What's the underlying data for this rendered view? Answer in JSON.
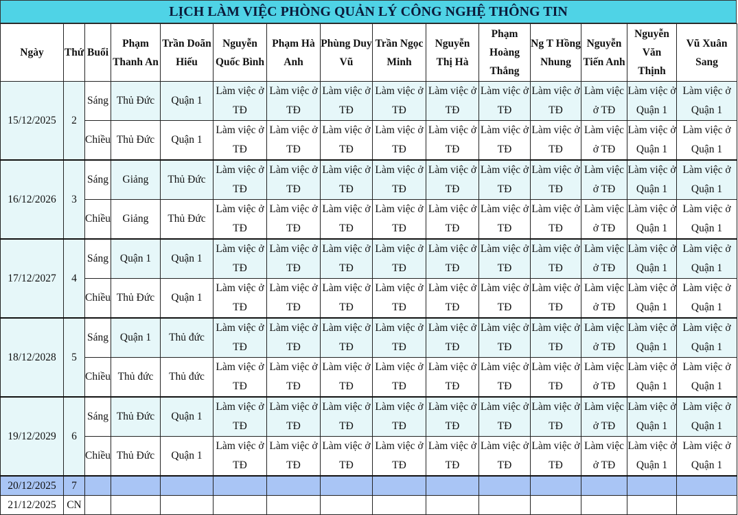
{
  "title": "LỊCH LÀM VIỆC PHÒNG QUẢN LÝ CÔNG NGHỆ THÔNG TIN",
  "headers": {
    "date": "Ngày",
    "weekday": "Thứ",
    "session": "Buổi",
    "people": [
      "Phạm Thanh An",
      "Trần Doãn Hiếu",
      "Nguyễn Quốc Bình",
      "Phạm Hà Anh",
      "Phùng Duy Vũ",
      "Trần Ngọc Minh",
      "Nguyễn Thị Hà",
      "Phạm Hoàng Thắng",
      "Ng T Hồng Nhung",
      "Nguyễn Tiến Anh",
      "Nguyễn Văn Thịnh",
      "Vũ Xuân Sang"
    ]
  },
  "days": [
    {
      "date": "15/12/2025",
      "weekday": "2",
      "sessions": [
        {
          "name": "Sáng",
          "cells": [
            "Thủ Đức",
            "Quận 1",
            "Làm việc ở TĐ",
            "Làm việc ở TĐ",
            "Làm việc ở TĐ",
            "Làm việc ở TĐ",
            "Làm việc ở TĐ",
            "Làm việc ở TĐ",
            "Làm việc ở TĐ",
            "Làm việc ở TĐ",
            "Làm việc ở Quận 1",
            "Làm việc ở Quận 1"
          ]
        },
        {
          "name": "Chiều",
          "cells": [
            "Thủ Đức",
            "Quận 1",
            "Làm việc ở TĐ",
            "Làm việc ở TĐ",
            "Làm việc ở TĐ",
            "Làm việc ở TĐ",
            "Làm việc ở TĐ",
            "Làm việc ở TĐ",
            "Làm việc ở TĐ",
            "Làm việc ở TĐ",
            "Làm việc ở Quận 1",
            "Làm việc ở Quận 1"
          ]
        }
      ]
    },
    {
      "date": "16/12/2026",
      "weekday": "3",
      "sessions": [
        {
          "name": "Sáng",
          "cells": [
            "Giảng",
            "Thủ Đức",
            "Làm việc ở TĐ",
            "Làm việc ở TĐ",
            "Làm việc ở TĐ",
            "Làm việc ở TĐ",
            "Làm việc ở TĐ",
            "Làm việc ở TĐ",
            "Làm việc ở TĐ",
            "Làm việc ở TĐ",
            "Làm việc ở Quận 1",
            "Làm việc ở Quận 1"
          ]
        },
        {
          "name": "Chiều",
          "cells": [
            "Giảng",
            "Thủ Đức",
            "Làm việc ở TĐ",
            "Làm việc ở TĐ",
            "Làm việc ở TĐ",
            "Làm việc ở TĐ",
            "Làm việc ở TĐ",
            "Làm việc ở TĐ",
            "Làm việc ở TĐ",
            "Làm việc ở TĐ",
            "Làm việc ở Quận 1",
            "Làm việc ở Quận 1"
          ]
        }
      ]
    },
    {
      "date": "17/12/2027",
      "weekday": "4",
      "sessions": [
        {
          "name": "Sáng",
          "cells": [
            "Quận 1",
            "Quận 1",
            "Làm việc ở TĐ",
            "Làm việc ở TĐ",
            "Làm việc ở TĐ",
            "Làm việc ở TĐ",
            "Làm việc ở TĐ",
            "Làm việc ở TĐ",
            "Làm việc ở TĐ",
            "Làm việc ở TĐ",
            "Làm việc ở Quận 1",
            "Làm việc ở Quận 1"
          ]
        },
        {
          "name": "Chiều",
          "cells": [
            "Thủ Đức",
            "Quận 1",
            "Làm việc ở TĐ",
            "Làm việc ở TĐ",
            "Làm việc ở TĐ",
            "Làm việc ở TĐ",
            "Làm việc ở TĐ",
            "Làm việc ở TĐ",
            "Làm việc ở TĐ",
            "Làm việc ở TĐ",
            "Làm việc ở Quận 1",
            "Làm việc ở Quận 1"
          ]
        }
      ]
    },
    {
      "date": "18/12/2028",
      "weekday": "5",
      "sessions": [
        {
          "name": "Sáng",
          "cells": [
            "Quận 1",
            "Thủ đức",
            "Làm việc ở TĐ",
            "Làm việc ở TĐ",
            "Làm việc ở TĐ",
            "Làm việc ở TĐ",
            "Làm việc ở TĐ",
            "Làm việc ở TĐ",
            "Làm việc ở TĐ",
            "Làm việc ở TĐ",
            "Làm việc ở Quận 1",
            "Làm việc ở Quận 1"
          ]
        },
        {
          "name": "Chiều",
          "cells": [
            "Thủ đức",
            "Thủ đức",
            "Làm việc ở TĐ",
            "Làm việc ở TĐ",
            "Làm việc ở TĐ",
            "Làm việc ở TĐ",
            "Làm việc ở TĐ",
            "Làm việc ở TĐ",
            "Làm việc ở TĐ",
            "Làm việc ở TĐ",
            "Làm việc ở Quận 1",
            "Làm việc ở Quận 1"
          ]
        }
      ]
    },
    {
      "date": "19/12/2029",
      "weekday": "6",
      "sessions": [
        {
          "name": "Sáng",
          "cells": [
            "Thủ Đức",
            "Quận 1",
            "Làm việc ở TĐ",
            "Làm việc ở TĐ",
            "Làm việc ở TĐ",
            "Làm việc ở TĐ",
            "Làm việc ở TĐ",
            "Làm việc ở TĐ",
            "Làm việc ở TĐ",
            "Làm việc ở TĐ",
            "Làm việc ở Quận 1",
            "Làm việc ở Quận 1"
          ]
        },
        {
          "name": "Chiều",
          "cells": [
            "Thủ Đức",
            "Quận 1",
            "Làm việc ở TĐ",
            "Làm việc ở TĐ",
            "Làm việc ở TĐ",
            "Làm việc ở TĐ",
            "Làm việc ở TĐ",
            "Làm việc ở TĐ",
            "Làm việc ở TĐ",
            "Làm việc ở TĐ",
            "Làm việc ở Quận 1",
            "Làm việc ở Quận 1"
          ]
        }
      ]
    }
  ],
  "weekend": [
    {
      "date": "20/12/2025",
      "weekday": "7"
    },
    {
      "date": "21/12/2025",
      "weekday": "CN"
    }
  ]
}
